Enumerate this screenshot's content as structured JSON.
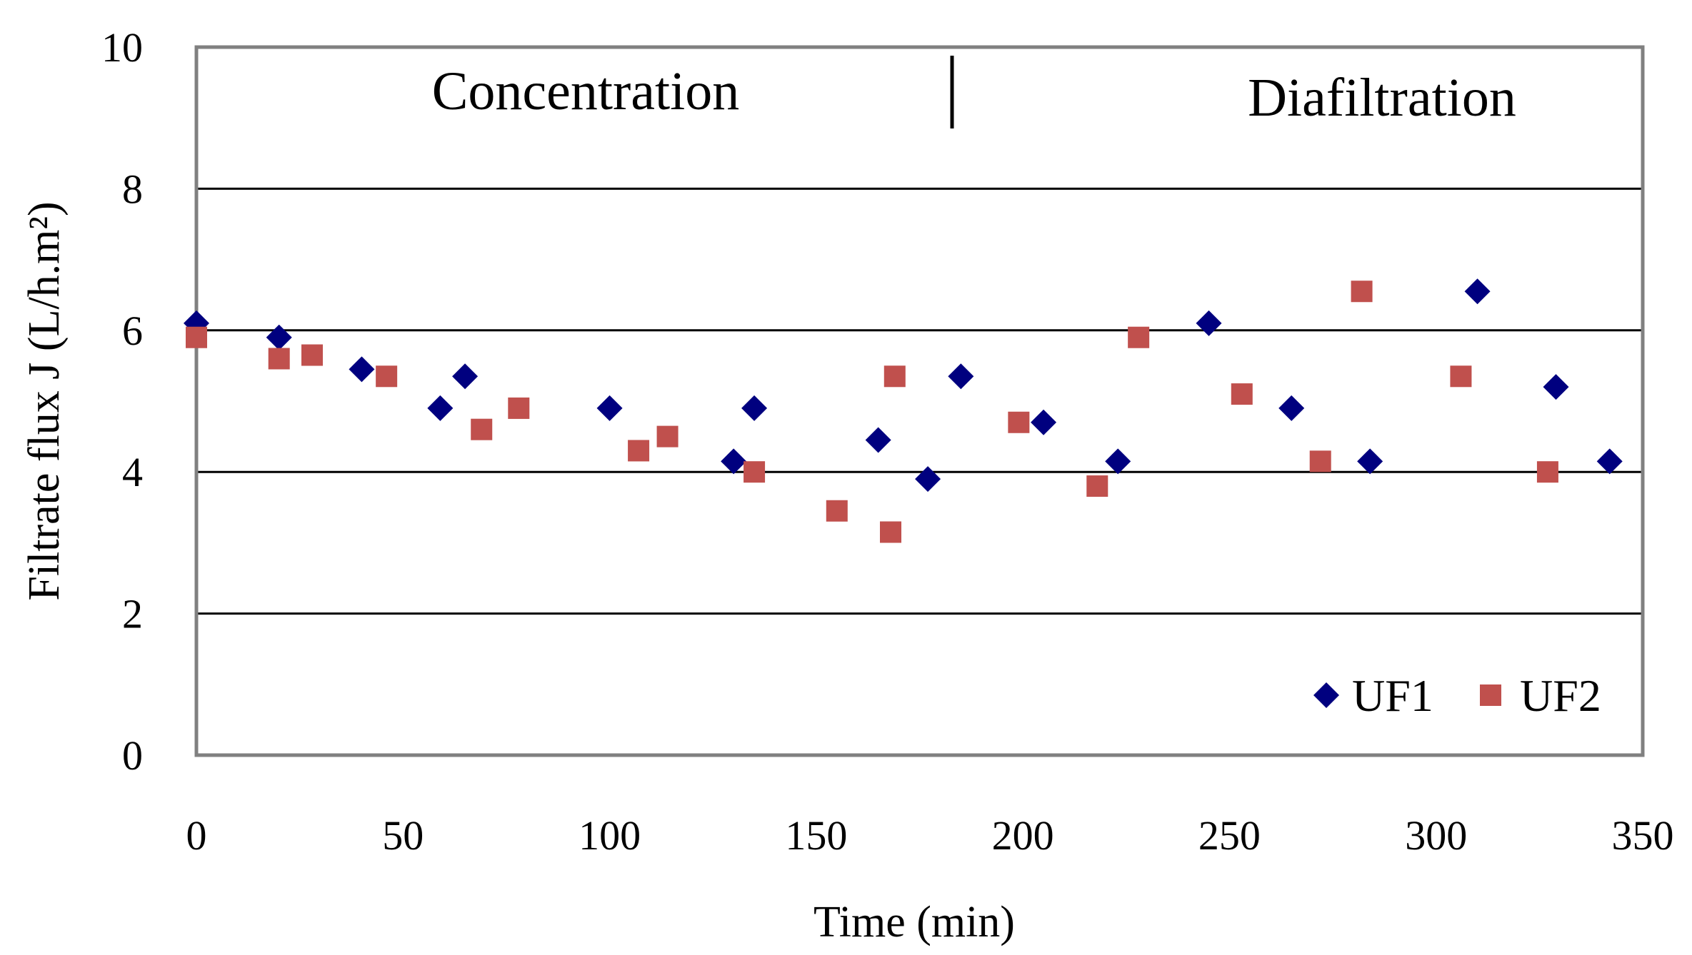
{
  "chart_data": {
    "type": "scatter",
    "title": "",
    "xlabel": "Time (min)",
    "ylabel": "Filtrate flux J (L/h.m²)",
    "xlim": [
      0,
      350
    ],
    "ylim": [
      0,
      10
    ],
    "xticks": [
      0,
      50,
      100,
      150,
      200,
      250,
      300,
      350
    ],
    "yticks": [
      0,
      2,
      4,
      6,
      8,
      10
    ],
    "grid": "horizontal",
    "legend": "bottom-right",
    "annotations": {
      "phase1": "Concentration",
      "phase2": "Diafiltration",
      "phase_boundary_x": 182
    },
    "series": [
      {
        "name": "UF1",
        "marker": "diamond",
        "color": "#00007f",
        "x": [
          0,
          20,
          40,
          59,
          65,
          100,
          130,
          135,
          165,
          177,
          185,
          205,
          223,
          245,
          265,
          284,
          310,
          329,
          342
        ],
        "y": [
          6.1,
          5.9,
          5.45,
          4.9,
          5.35,
          4.9,
          4.15,
          4.9,
          4.45,
          3.9,
          5.35,
          4.7,
          4.15,
          6.1,
          4.9,
          4.15,
          6.55,
          5.2,
          4.15
        ]
      },
      {
        "name": "UF2",
        "marker": "square",
        "color": "#c0504d",
        "x": [
          0,
          20,
          28,
          46,
          69,
          78,
          107,
          114,
          135,
          155,
          168,
          169,
          199,
          218,
          228,
          253,
          272,
          282,
          306,
          327
        ],
        "y": [
          5.9,
          5.6,
          5.65,
          5.35,
          4.6,
          4.9,
          4.3,
          4.5,
          4.0,
          3.45,
          3.15,
          5.35,
          4.7,
          3.8,
          5.9,
          5.1,
          4.15,
          6.55,
          5.35,
          4.0
        ]
      }
    ]
  }
}
